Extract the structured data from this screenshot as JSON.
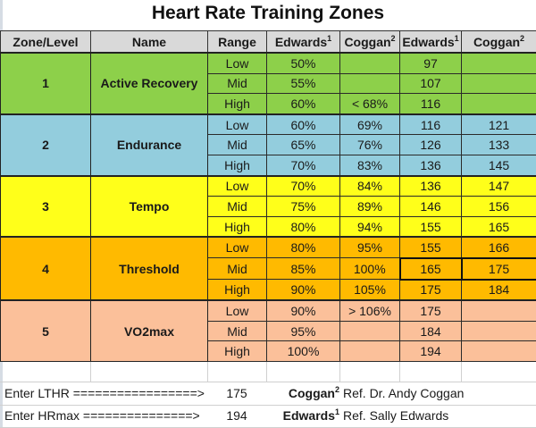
{
  "title": "Heart Rate Training Zones",
  "header": {
    "zone": "Zone/Level",
    "name": "Name",
    "range": "Range",
    "edwards_pct": "Edwards",
    "edwards_pct_sup": "1",
    "coggan_pct": "Coggan",
    "coggan_pct_sup": "2",
    "edwards_bpm": "Edwards",
    "edwards_bpm_sup": "1",
    "coggan_bpm": "Coggan",
    "coggan_bpm_sup": "2"
  },
  "colors": {
    "zone1": "#8dd04a",
    "zone2": "#93cddd",
    "zone3": "#ffff1a",
    "zone4": "#ffba00",
    "zone5": "#fbc09a",
    "header": "#d9d9d9"
  },
  "zones": [
    {
      "level": "1",
      "name": "Active Recovery",
      "rows": [
        {
          "range": "Low",
          "edwards_pct": "50%",
          "coggan_pct": "",
          "edwards_bpm": "97",
          "coggan_bpm": ""
        },
        {
          "range": "Mid",
          "edwards_pct": "55%",
          "coggan_pct": "",
          "edwards_bpm": "107",
          "coggan_bpm": ""
        },
        {
          "range": "High",
          "edwards_pct": "60%",
          "coggan_pct": "< 68%",
          "edwards_bpm": "116",
          "coggan_bpm": ""
        }
      ]
    },
    {
      "level": "2",
      "name": "Endurance",
      "rows": [
        {
          "range": "Low",
          "edwards_pct": "60%",
          "coggan_pct": "69%",
          "edwards_bpm": "116",
          "coggan_bpm": "121"
        },
        {
          "range": "Mid",
          "edwards_pct": "65%",
          "coggan_pct": "76%",
          "edwards_bpm": "126",
          "coggan_bpm": "133"
        },
        {
          "range": "High",
          "edwards_pct": "70%",
          "coggan_pct": "83%",
          "edwards_bpm": "136",
          "coggan_bpm": "145"
        }
      ]
    },
    {
      "level": "3",
      "name": "Tempo",
      "rows": [
        {
          "range": "Low",
          "edwards_pct": "70%",
          "coggan_pct": "84%",
          "edwards_bpm": "136",
          "coggan_bpm": "147"
        },
        {
          "range": "Mid",
          "edwards_pct": "75%",
          "coggan_pct": "89%",
          "edwards_bpm": "146",
          "coggan_bpm": "156"
        },
        {
          "range": "High",
          "edwards_pct": "80%",
          "coggan_pct": "94%",
          "edwards_bpm": "155",
          "coggan_bpm": "165"
        }
      ]
    },
    {
      "level": "4",
      "name": "Threshold",
      "rows": [
        {
          "range": "Low",
          "edwards_pct": "80%",
          "coggan_pct": "95%",
          "edwards_bpm": "155",
          "coggan_bpm": "166"
        },
        {
          "range": "Mid",
          "edwards_pct": "85%",
          "coggan_pct": "100%",
          "edwards_bpm": "165",
          "coggan_bpm": "175"
        },
        {
          "range": "High",
          "edwards_pct": "90%",
          "coggan_pct": "105%",
          "edwards_bpm": "175",
          "coggan_bpm": "184"
        }
      ]
    },
    {
      "level": "5",
      "name": "VO2max",
      "rows": [
        {
          "range": "Low",
          "edwards_pct": "90%",
          "coggan_pct": "> 106%",
          "edwards_bpm": "175",
          "coggan_bpm": ""
        },
        {
          "range": "Mid",
          "edwards_pct": "95%",
          "coggan_pct": "",
          "edwards_bpm": "184",
          "coggan_bpm": ""
        },
        {
          "range": "High",
          "edwards_pct": "100%",
          "coggan_pct": "",
          "edwards_bpm": "194",
          "coggan_bpm": ""
        }
      ]
    }
  ],
  "footer": {
    "lthr": {
      "label": "Enter LTHR =================>",
      "value": "175",
      "source": "Coggan",
      "source_sup": "2",
      "ref": "Ref. Dr. Andy Coggan"
    },
    "hrmax": {
      "label": "Enter HRmax ===============>",
      "value": "194",
      "source": "Edwards",
      "source_sup": "1",
      "ref": "Ref. Sally Edwards"
    }
  }
}
